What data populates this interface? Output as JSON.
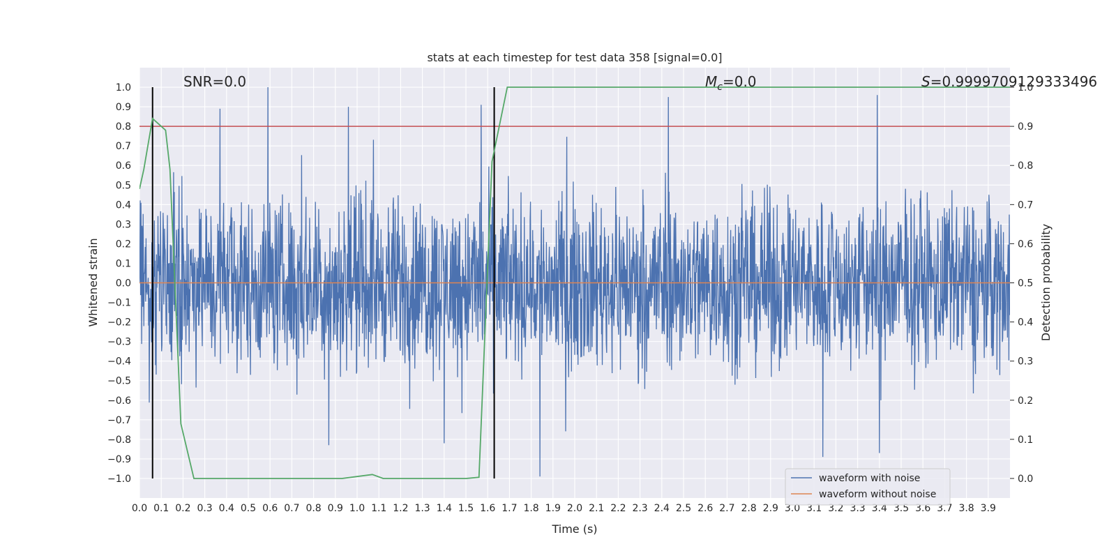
{
  "chart_data": {
    "type": "line",
    "title": "stats at each timestep for test data 358 [signal=0.0]",
    "xlabel": "Time (s)",
    "ylabel_left": "Whitened strain",
    "ylabel_right": "Detection probability",
    "xlim": [
      0.0,
      4.0
    ],
    "ylim_left": [
      -1.1,
      1.1
    ],
    "ylim_right": [
      -0.05,
      1.05
    ],
    "xticks": [
      "0.0",
      "0.1",
      "0.2",
      "0.3",
      "0.4",
      "0.5",
      "0.6",
      "0.7",
      "0.8",
      "0.9",
      "1.0",
      "1.1",
      "1.2",
      "1.3",
      "1.4",
      "1.5",
      "1.6",
      "1.7",
      "1.8",
      "1.9",
      "2.0",
      "2.1",
      "2.2",
      "2.3",
      "2.4",
      "2.5",
      "2.6",
      "2.7",
      "2.8",
      "2.9",
      "3.0",
      "3.1",
      "3.2",
      "3.3",
      "3.4",
      "3.5",
      "3.6",
      "3.7",
      "3.8",
      "3.9"
    ],
    "yticks_left": [
      "1.0",
      "0.9",
      "0.8",
      "0.7",
      "0.6",
      "0.5",
      "0.4",
      "0.3",
      "0.2",
      "0.1",
      "0.0",
      "−0.1",
      "−0.2",
      "−0.3",
      "−0.4",
      "−0.5",
      "−0.6",
      "−0.7",
      "−0.8",
      "−0.9",
      "−1.0"
    ],
    "yticks_right": [
      "1.0",
      "0.9",
      "0.8",
      "0.7",
      "0.6",
      "0.5",
      "0.4",
      "0.3",
      "0.2",
      "0.1",
      "0.0"
    ],
    "grid": true,
    "legend_position": "lower-right",
    "annotations": {
      "snr": "SNR=0.0",
      "mc_symbol": "M",
      "mc_sub": "c",
      "mc_value": "=0.0",
      "s_symbol": "S",
      "s_value": "=0.9999709129333496"
    },
    "threshold_left": 0.8,
    "vertical_lines_x": [
      0.06,
      1.63
    ],
    "series": [
      {
        "name": "waveform with noise",
        "axis": "left",
        "color": "#4c72b0",
        "style": "dense noise",
        "range": [
          -1.0,
          1.0
        ],
        "peaks": [
          {
            "x": 0.06,
            "y": -0.7
          },
          {
            "x": 0.37,
            "y": 0.89
          },
          {
            "x": 0.59,
            "y": 1.0
          },
          {
            "x": 0.87,
            "y": -0.83
          },
          {
            "x": 0.96,
            "y": 0.9
          },
          {
            "x": 1.4,
            "y": -0.82
          },
          {
            "x": 1.57,
            "y": 0.91
          },
          {
            "x": 1.84,
            "y": -0.99
          },
          {
            "x": 2.43,
            "y": 0.95
          },
          {
            "x": 3.14,
            "y": -0.89
          },
          {
            "x": 3.39,
            "y": 0.96
          },
          {
            "x": 3.4,
            "y": -0.87
          }
        ]
      },
      {
        "name": "waveform without noise",
        "axis": "left",
        "color": "#dd8452",
        "x": [
          0.0,
          4.0
        ],
        "y": [
          0.0,
          0.0
        ]
      },
      {
        "axis": "right",
        "color": "#55a868",
        "x": [
          0.0,
          0.02,
          0.06,
          0.12,
          0.14,
          0.19,
          0.25,
          0.5,
          0.93,
          1.07,
          1.12,
          1.5,
          1.56,
          1.62,
          1.69,
          4.0
        ],
        "y": [
          0.74,
          0.79,
          0.92,
          0.89,
          0.79,
          0.14,
          0.0,
          0.0,
          0.0,
          0.01,
          0.0,
          0.0,
          0.003,
          0.81,
          1.0,
          1.0
        ]
      }
    ],
    "colors": {
      "background": "#eaeaf2",
      "grid": "#ffffff",
      "threshold": "#c44e52",
      "vline": "#000000"
    }
  }
}
